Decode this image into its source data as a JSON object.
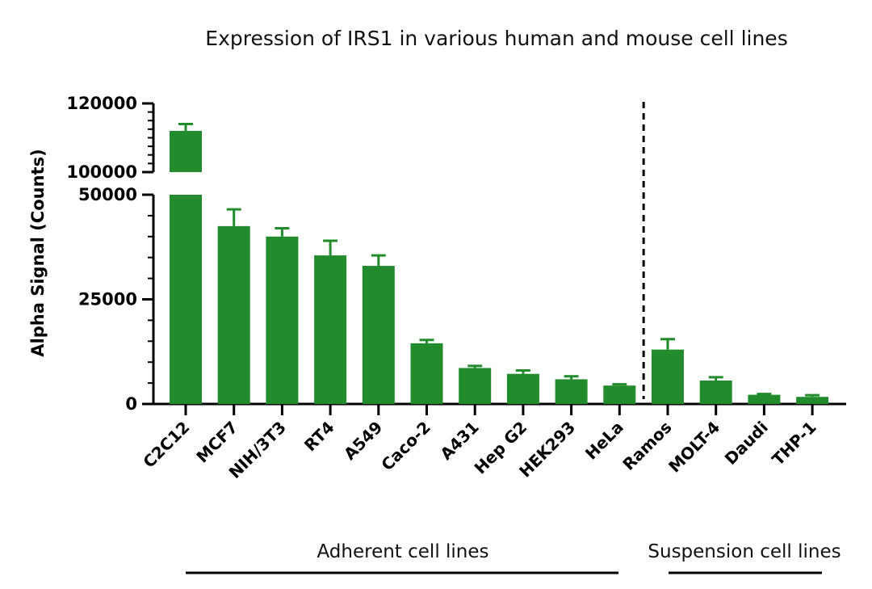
{
  "chart_data": {
    "type": "bar",
    "title": "Expression of IRS1 in various human and mouse cell lines",
    "ylabel": "Alpha Signal (Counts)",
    "xlabel": "",
    "y_axis_break": {
      "lower_segment": [
        0,
        50000
      ],
      "upper_segment": [
        100000,
        120000
      ]
    },
    "yticks_lower": [
      0,
      25000,
      50000
    ],
    "yticks_upper": [
      100000,
      120000
    ],
    "tick_labels": {
      "t0": "0",
      "t25000": "25000",
      "t50000": "50000",
      "t100000": "100000",
      "t120000": "120000"
    },
    "categories": [
      "C2C12",
      "MCF7",
      "NIH/3T3",
      "RT4",
      "A549",
      "Caco-2",
      "A431",
      "Hep G2",
      "HEK293",
      "HeLa",
      "Ramos",
      "MOLT-4",
      "Daudi",
      "THP-1"
    ],
    "values": [
      112000,
      42500,
      40000,
      35500,
      33000,
      14500,
      8600,
      7200,
      5900,
      4400,
      13000,
      5600,
      2200,
      1700
    ],
    "errors": [
      2000,
      4000,
      2000,
      3500,
      2500,
      800,
      500,
      800,
      700,
      300,
      2500,
      800,
      200,
      400
    ],
    "groups": [
      {
        "label": "Adherent cell lines",
        "categories": [
          "C2C12",
          "MCF7",
          "NIH/3T3",
          "RT4",
          "A549",
          "Caco-2",
          "A431",
          "Hep G2",
          "HEK293",
          "HeLa"
        ]
      },
      {
        "label": "Suspension cell lines",
        "categories": [
          "Ramos",
          "MOLT-4",
          "Daudi",
          "THP-1"
        ]
      }
    ],
    "divider_after_category": "HeLa",
    "grid": false,
    "bar_color": "#228B2C",
    "error_bar_color": "#228B2C",
    "axis_color": "#000000"
  }
}
